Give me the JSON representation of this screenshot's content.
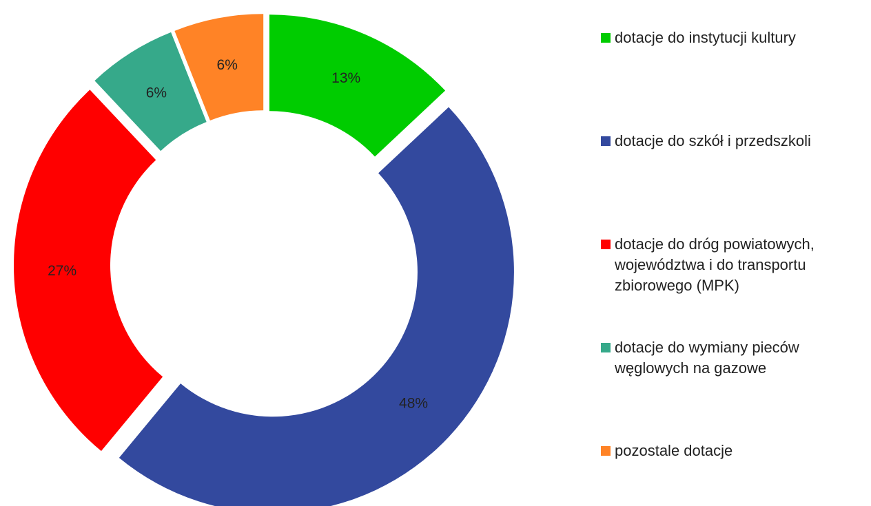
{
  "chart_data": {
    "type": "donut",
    "series": [
      {
        "name": "dotacje do instytucji kultury",
        "color": "#00cc00",
        "values": [
          13
        ],
        "value_labels": [
          "13%"
        ]
      },
      {
        "name": "dotacje do szkół i przedszkoli",
        "color": "#33499e",
        "values": [
          48
        ],
        "value_labels": [
          "48%"
        ]
      },
      {
        "name": "dotacje do dróg powiatowych, województwa i do transportu zbiorowego (MPK)",
        "color": "#ff0000",
        "values": [
          27
        ],
        "value_labels": [
          "27%"
        ]
      },
      {
        "name": "dotacje do wymiany pieców węglowych na gazowe",
        "color": "#36a98a",
        "values": [
          6
        ],
        "value_labels": [
          "6%"
        ]
      },
      {
        "name": "pozostale dotacje",
        "color": "#ff8326",
        "values": [
          6
        ],
        "value_labels": [
          "6%"
        ]
      }
    ]
  }
}
